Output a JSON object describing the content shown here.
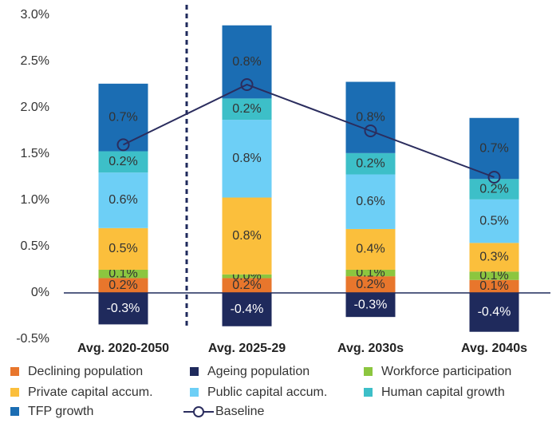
{
  "chart_data": {
    "type": "bar",
    "stacked": true,
    "categories": [
      "Avg. 2020-2050",
      "Avg. 2025-29",
      "Avg. 2030s",
      "Avg. 2040s"
    ],
    "series": [
      {
        "name": "Declining population",
        "color": "#e8762c",
        "values": [
          0.16,
          0.16,
          0.18,
          0.14
        ],
        "value_labels": [
          "0.2%",
          "0.2%",
          "0.2%",
          "0.1%"
        ]
      },
      {
        "name": "Ageing population",
        "color": "#1f2a5c",
        "values": [
          -0.34,
          -0.36,
          -0.26,
          -0.42
        ],
        "value_labels": [
          "-0.3%",
          "-0.4%",
          "-0.3%",
          "-0.4%"
        ]
      },
      {
        "name": "Workforce participation",
        "color": "#8cc63f",
        "values": [
          0.09,
          0.04,
          0.07,
          0.09
        ],
        "value_labels": [
          "0.1%",
          "0.0%",
          "0.1%",
          "0.1%"
        ]
      },
      {
        "name": "Private capital accum.",
        "color": "#fbbf3c",
        "values": [
          0.45,
          0.83,
          0.44,
          0.31
        ],
        "value_labels": [
          "0.5%",
          "0.8%",
          "0.4%",
          "0.3%"
        ]
      },
      {
        "name": "Public capital accum.",
        "color": "#6dcff6",
        "values": [
          0.6,
          0.84,
          0.59,
          0.47
        ],
        "value_labels": [
          "0.6%",
          "0.8%",
          "0.6%",
          "0.5%"
        ]
      },
      {
        "name": "Human capital growth",
        "color": "#3dbfc8",
        "values": [
          0.23,
          0.23,
          0.23,
          0.22
        ],
        "value_labels": [
          "0.2%",
          "0.2%",
          "0.2%",
          "0.2%"
        ]
      },
      {
        "name": "TFP growth",
        "color": "#1b6db3",
        "values": [
          0.73,
          0.79,
          0.77,
          0.66
        ],
        "value_labels": [
          "0.7%",
          "0.8%",
          "0.8%",
          "0.7%"
        ]
      },
      {
        "name": "Baseline",
        "type": "line",
        "color": "#2b2d5e",
        "values": [
          1.6,
          2.25,
          1.75,
          1.25
        ]
      }
    ],
    "ylim": [
      -0.5,
      3.0
    ],
    "yticks": [
      {
        "value": -0.5,
        "label": "-0.5%"
      },
      {
        "value": 0,
        "label": "0%"
      },
      {
        "value": 0.5,
        "label": "0.5%"
      },
      {
        "value": 1.0,
        "label": "1.0%"
      },
      {
        "value": 1.5,
        "label": "1.5%"
      },
      {
        "value": 2.0,
        "label": "2.0%"
      },
      {
        "value": 2.5,
        "label": "2.5%"
      },
      {
        "value": 3.0,
        "label": "3.0%"
      }
    ],
    "grid": false
  }
}
